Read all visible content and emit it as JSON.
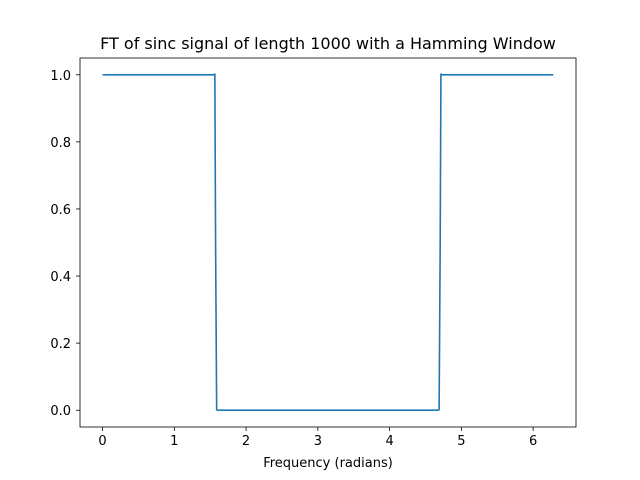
{
  "chart_data": {
    "type": "line",
    "title": "FT of sinc signal of length 1000 with a Hamming Window",
    "xlabel": "Frequency (radians)",
    "ylabel": "",
    "xlim": [
      -0.3142,
      6.5973
    ],
    "ylim": [
      -0.05,
      1.05
    ],
    "x_ticks": [
      0,
      1,
      2,
      3,
      4,
      5,
      6
    ],
    "x_tick_labels": [
      "0",
      "1",
      "2",
      "3",
      "4",
      "5",
      "6"
    ],
    "y_ticks": [
      0.0,
      0.2,
      0.4,
      0.6,
      0.8,
      1.0
    ],
    "y_tick_labels": [
      "0.0",
      "0.2",
      "0.4",
      "0.6",
      "0.8",
      "1.0"
    ],
    "grid": false,
    "legend": "none",
    "series": [
      {
        "color": "#1f77b4",
        "x": [
          0,
          1.0,
          1.55,
          1.565,
          1.575,
          1.59,
          1.6,
          3.0,
          4.68,
          4.69,
          4.705,
          4.715,
          4.73,
          5.5,
          6.28
        ],
        "y": [
          1.0,
          1.0,
          1.0,
          1.002,
          0.5,
          0.002,
          0.0,
          0.0,
          0.0,
          0.002,
          0.5,
          1.002,
          1.0,
          1.0,
          1.0
        ]
      }
    ]
  }
}
